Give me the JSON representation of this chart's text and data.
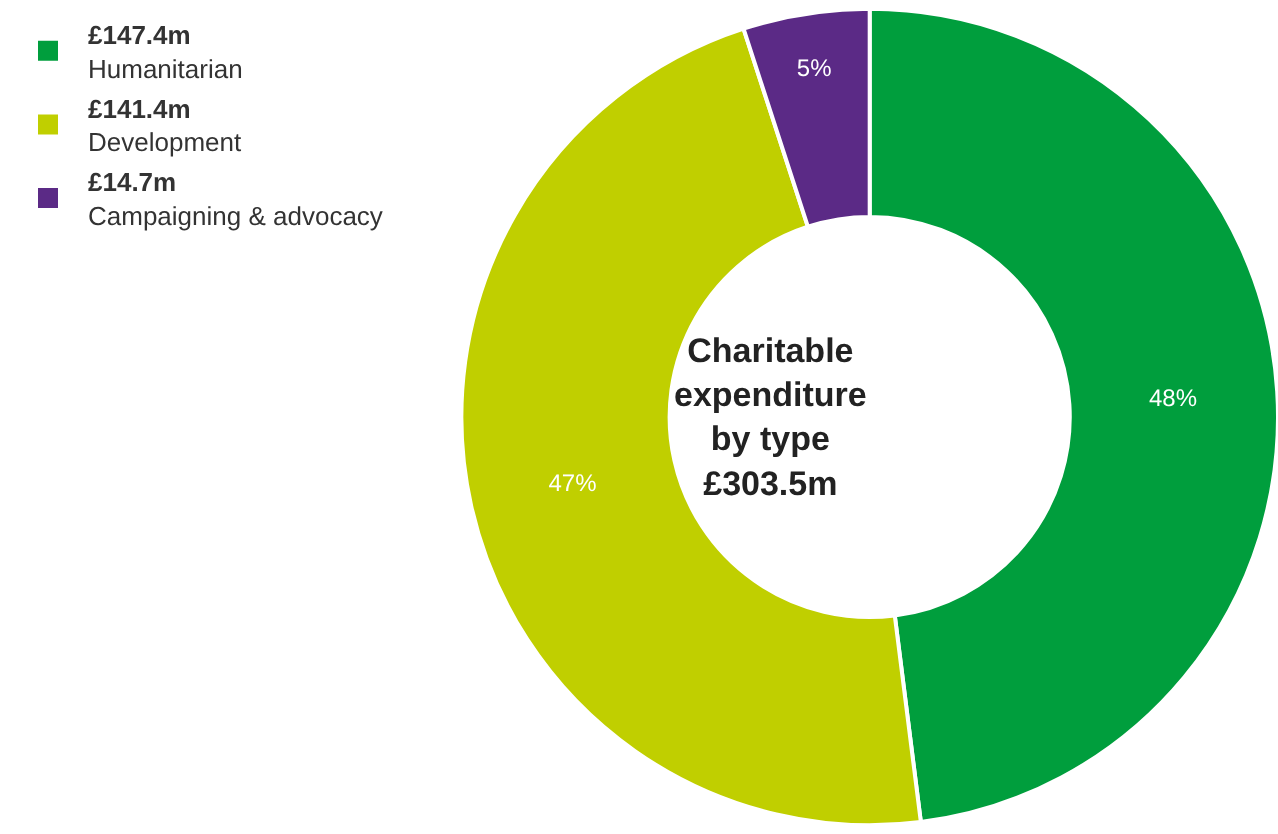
{
  "chart_data": {
    "type": "donut",
    "title": "Charitable\nexpenditure\nby type\n£303.5m",
    "categories": [
      "£147.4m\nHumanitarian",
      "£141.4m\nDevelopment",
      "£14.7m\nCampaigning & advocacy"
    ],
    "values": [
      48,
      47,
      5
    ],
    "value_labels": [
      "48%",
      "47%",
      "5%"
    ],
    "colors": [
      "#009e3d",
      "#c0cf00",
      "#5b2a86"
    ],
    "legend": "top left"
  }
}
